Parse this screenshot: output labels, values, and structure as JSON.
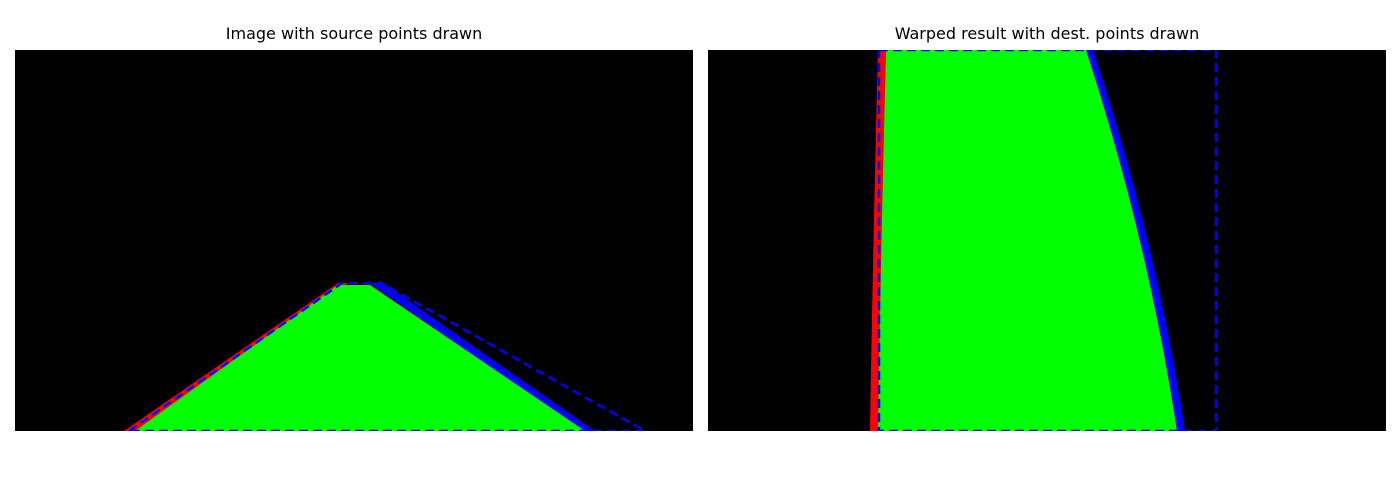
{
  "figure": {
    "left_panel": {
      "title": "Image with source points drawn"
    },
    "right_panel": {
      "title": "Warped result with dest. points drawn"
    }
  },
  "colors": {
    "background": "#000000",
    "lane_fill": "#00ff00",
    "left_lane_line": "#ff0000",
    "right_lane_line": "#0000ff",
    "points_outline": "#0000ff",
    "page_background": "#ffffff"
  }
}
